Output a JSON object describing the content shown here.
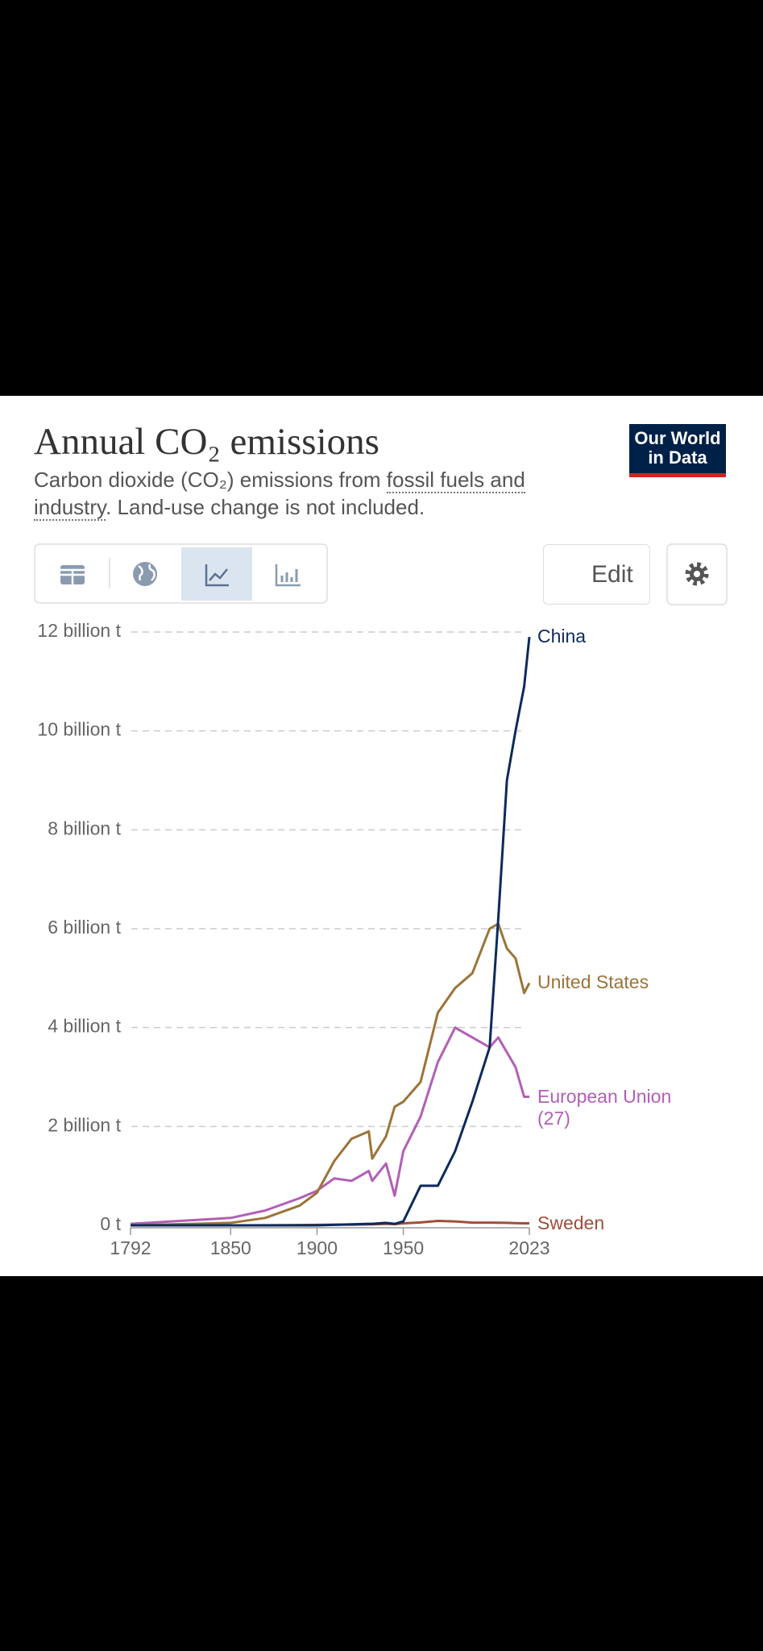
{
  "header": {
    "title": "Annual CO₂ emissions",
    "subtitle": [
      "Carbon dioxide (CO₂) emissions from ",
      "fossil fuels and industry",
      ". Land-use change is not included."
    ],
    "logo": [
      "Our World",
      "in Data"
    ]
  },
  "toolbar": {
    "edit": "Edit"
  },
  "chart_data": {
    "type": "line",
    "x": [
      1792,
      1850,
      1870,
      1890,
      1900,
      1910,
      1920,
      1930,
      1932,
      1940,
      1945,
      1950,
      1960,
      1970,
      1980,
      1990,
      2000,
      2005,
      2010,
      2015,
      2020,
      2023
    ],
    "series": [
      {
        "name": "China",
        "color": "#0d2a5c",
        "values": [
          0,
          0,
          0,
          0,
          0,
          10000000,
          20000000,
          30000000,
          30000000,
          50000000,
          30000000,
          80000000,
          800000000,
          800000000,
          1500000000,
          2500000000,
          3600000000,
          6200000000,
          9000000000,
          10000000000,
          10900000000,
          11900000000
        ]
      },
      {
        "name": "United States",
        "color": "#9c7438",
        "values": [
          0,
          50000000,
          150000000,
          400000000,
          660000000,
          1300000000,
          1750000000,
          1900000000,
          1350000000,
          1800000000,
          2400000000,
          2500000000,
          2900000000,
          4300000000,
          4800000000,
          5100000000,
          6000000000,
          6100000000,
          5600000000,
          5400000000,
          4700000000,
          4900000000
        ]
      },
      {
        "name": "European Union (27)",
        "color": "#b25fb6",
        "values": [
          30000000,
          150000000,
          300000000,
          550000000,
          700000000,
          950000000,
          900000000,
          1100000000,
          900000000,
          1250000000,
          600000000,
          1500000000,
          2200000000,
          3300000000,
          4000000000,
          3800000000,
          3600000000,
          3800000000,
          3500000000,
          3200000000,
          2600000000,
          2600000000
        ]
      },
      {
        "name": "Sweden",
        "color": "#a14f3a",
        "values": [
          0,
          1000000,
          3000000,
          6000000,
          10000000,
          15000000,
          15000000,
          20000000,
          20000000,
          30000000,
          25000000,
          40000000,
          60000000,
          90000000,
          80000000,
          55000000,
          55000000,
          52000000,
          50000000,
          45000000,
          40000000,
          40000000
        ]
      }
    ],
    "xlim": [
      1792,
      2023
    ],
    "xticks": [
      1792,
      1850,
      1900,
      1950,
      2023
    ],
    "ylim": [
      0,
      12000000000
    ],
    "yticks": [
      {
        "value": 0,
        "label": "0 t"
      },
      {
        "value": 2000000000,
        "label": "2 billion t"
      },
      {
        "value": 4000000000,
        "label": "4 billion t"
      },
      {
        "value": 6000000000,
        "label": "6 billion t"
      },
      {
        "value": 8000000000,
        "label": "8 billion t"
      },
      {
        "value": 10000000000,
        "label": "10 billion t"
      },
      {
        "value": 12000000000,
        "label": "12 billion t"
      }
    ],
    "grid": true
  }
}
